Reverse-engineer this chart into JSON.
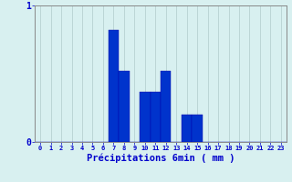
{
  "xlabel": "Précipitations 6min ( mm )",
  "categories": [
    0,
    1,
    2,
    3,
    4,
    5,
    6,
    7,
    8,
    9,
    10,
    11,
    12,
    13,
    14,
    15,
    16,
    17,
    18,
    19,
    20,
    21,
    22,
    23
  ],
  "values": [
    0,
    0,
    0,
    0,
    0,
    0,
    0,
    0.82,
    0.52,
    0,
    0.37,
    0.37,
    0.52,
    0,
    0.2,
    0.2,
    0,
    0,
    0,
    0,
    0,
    0,
    0,
    0
  ],
  "bar_color": "#0033cc",
  "bar_edge_color": "#0000aa",
  "background_color": "#d8f0f0",
  "grid_color": "#b0cccc",
  "axis_color": "#888888",
  "text_color": "#0000cc",
  "ylim": [
    0,
    1.0
  ],
  "yticks": [
    0,
    1
  ],
  "xlim": [
    -0.5,
    23.5
  ],
  "figsize": [
    3.2,
    2.0
  ],
  "dpi": 100
}
